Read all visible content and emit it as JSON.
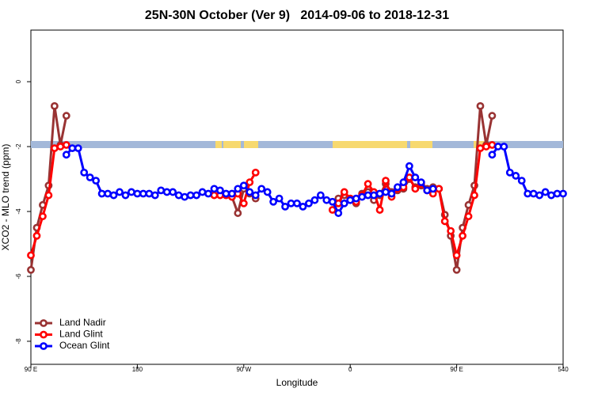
{
  "chart_data": {
    "type": "line",
    "title": "25N-30N October (Ver 9)   2014-09-06 to 2018-12-31",
    "x_label": "Longitude",
    "y_label": "XCO2 - MLO trend (ppm)",
    "xlim": [
      90,
      540
    ],
    "ylim": [
      -8.71,
      1.59
    ],
    "xticks": [
      {
        "value": 90,
        "label": "90 E"
      },
      180,
      {
        "value": 270,
        "label": "90 W"
      },
      {
        "value": 360,
        "label": "0"
      },
      {
        "value": 450,
        "label": "90 E"
      },
      540
    ],
    "yticks": [
      0,
      -2,
      -4,
      -6,
      -8
    ],
    "legend": "bottom-left",
    "x": [
      90,
      95,
      100,
      105,
      110,
      115,
      120,
      125,
      130,
      135,
      140,
      145,
      150,
      155,
      160,
      165,
      170,
      175,
      180,
      185,
      190,
      195,
      200,
      205,
      210,
      215,
      220,
      225,
      230,
      235,
      240,
      245,
      250,
      255,
      260,
      265,
      270,
      275,
      280,
      285,
      290,
      295,
      300,
      305,
      310,
      315,
      320,
      325,
      330,
      335,
      340,
      345,
      350,
      355,
      360,
      365,
      370,
      375,
      380,
      385,
      390,
      395,
      400,
      405,
      410,
      415,
      420,
      425,
      430,
      435,
      440,
      445,
      450,
      455,
      460,
      465,
      470,
      475,
      480,
      485,
      490,
      495,
      500,
      505,
      510,
      515,
      520,
      525,
      530,
      535,
      540
    ],
    "series": [
      {
        "name": "Land Nadir",
        "color": "#993333",
        "values": [
          -5.8,
          -4.5,
          -3.8,
          -3.2,
          -0.75,
          -1.95,
          -1.05,
          null,
          null,
          null,
          null,
          null,
          null,
          null,
          null,
          null,
          null,
          null,
          null,
          null,
          null,
          null,
          null,
          null,
          null,
          null,
          null,
          null,
          null,
          null,
          null,
          null,
          null,
          null,
          -3.55,
          -4.05,
          -3.3,
          -3.45,
          -3.6,
          null,
          null,
          null,
          null,
          null,
          null,
          null,
          null,
          null,
          null,
          null,
          null,
          null,
          -3.6,
          -3.5,
          -3.65,
          -3.75,
          -3.45,
          -3.4,
          -3.65,
          -3.5,
          -3.15,
          -3.4,
          -3.35,
          -3.3,
          -3.0,
          -3.25,
          -3.2,
          -3.3,
          -3.25,
          -3.3,
          -4.1,
          -4.75,
          -5.8,
          -4.5,
          -3.8,
          -3.2,
          -0.75,
          -1.95,
          -1.05,
          null,
          null,
          null,
          null,
          null,
          null,
          null,
          null,
          null,
          null,
          null,
          null
        ]
      },
      {
        "name": "Land Glint",
        "color": "#ff0000",
        "values": [
          -5.35,
          -4.75,
          -4.15,
          -3.5,
          -2.05,
          -2.0,
          -1.95,
          null,
          null,
          null,
          null,
          null,
          null,
          null,
          null,
          null,
          null,
          null,
          null,
          null,
          null,
          null,
          null,
          null,
          null,
          null,
          null,
          null,
          null,
          null,
          null,
          -3.5,
          -3.5,
          -3.5,
          -3.55,
          -3.45,
          -3.75,
          -3.1,
          -2.8,
          null,
          null,
          null,
          null,
          null,
          null,
          null,
          null,
          null,
          null,
          null,
          null,
          -3.95,
          -3.75,
          -3.4,
          -3.6,
          -3.7,
          -3.5,
          -3.15,
          -3.4,
          -3.95,
          -3.05,
          -3.55,
          -3.3,
          -3.25,
          -2.95,
          -3.3,
          -3.15,
          -3.35,
          -3.45,
          -3.3,
          -4.3,
          -4.6,
          -5.35,
          -4.75,
          -4.15,
          -3.5,
          -2.05,
          -2.0,
          -1.95,
          null,
          null,
          null,
          null,
          null,
          null,
          null,
          null,
          null,
          null,
          null,
          null
        ]
      },
      {
        "name": "Ocean Glint",
        "color": "#0000ff",
        "values": [
          null,
          null,
          null,
          null,
          null,
          null,
          -2.25,
          -2.05,
          -2.05,
          -2.8,
          -2.95,
          -3.05,
          -3.45,
          -3.45,
          -3.5,
          -3.4,
          -3.5,
          -3.4,
          -3.45,
          -3.45,
          -3.45,
          -3.5,
          -3.35,
          -3.4,
          -3.4,
          -3.5,
          -3.55,
          -3.5,
          -3.5,
          -3.4,
          -3.45,
          -3.3,
          -3.35,
          -3.45,
          -3.45,
          -3.3,
          -3.2,
          -3.4,
          -3.5,
          -3.3,
          -3.4,
          -3.7,
          -3.6,
          -3.85,
          -3.75,
          -3.75,
          -3.85,
          -3.75,
          -3.65,
          -3.5,
          -3.65,
          -3.7,
          -4.05,
          -3.75,
          -3.65,
          -3.6,
          -3.55,
          -3.5,
          -3.5,
          -3.45,
          -3.4,
          -3.45,
          -3.25,
          -3.1,
          -2.6,
          -2.95,
          -3.1,
          -3.35,
          -3.3,
          null,
          null,
          null,
          null,
          null,
          null,
          null,
          null,
          null,
          -2.25,
          -2.0,
          -2.0,
          -2.8,
          -2.9,
          -3.05,
          -3.45,
          -3.45,
          -3.5,
          -3.4,
          -3.5,
          -3.45,
          -3.45
        ]
      }
    ]
  }
}
